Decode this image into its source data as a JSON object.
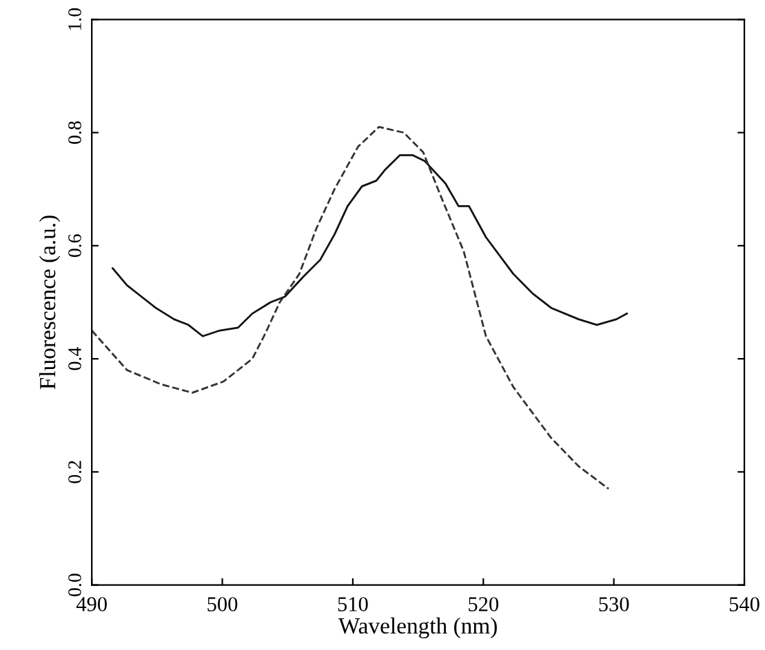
{
  "chart_data": {
    "type": "line",
    "xlabel": "Wavelength (nm)",
    "ylabel": "Fluorescence (a.u.)",
    "xlim": [
      490,
      540
    ],
    "xticks": [
      490,
      500,
      510,
      520,
      530,
      540
    ],
    "ylim": [
      0,
      1
    ],
    "yticks": [
      {
        "value": 0,
        "label": "0.0"
      },
      {
        "value": 0.2,
        "label": "0.2"
      },
      {
        "value": 0.4,
        "label": "0.4"
      },
      {
        "value": 0.6,
        "label": "0.6"
      },
      {
        "value": 0.8,
        "label": "0.8"
      },
      {
        "value": 1,
        "label": "1.0"
      }
    ],
    "grid": false,
    "legend": false,
    "series": [
      {
        "color": "#111111",
        "line_style": "solid",
        "x": [
          491.6,
          492.7,
          493.8,
          494.9,
          496.3,
          497.4,
          498.5,
          499.8,
          501.2,
          502.3,
          503.7,
          504.8,
          506.2,
          507.5,
          508.6,
          509.6,
          510.7,
          511.8,
          512.5,
          513.6,
          514.6,
          515.5,
          517.1,
          518.1,
          518.9,
          520.2,
          522.3,
          523.8,
          525.2,
          527.3,
          528.7,
          530.2,
          531.0
        ],
        "values": [
          0.56,
          0.53,
          0.51,
          0.49,
          0.47,
          0.46,
          0.44,
          0.45,
          0.455,
          0.48,
          0.5,
          0.51,
          0.545,
          0.575,
          0.62,
          0.67,
          0.705,
          0.715,
          0.735,
          0.76,
          0.76,
          0.75,
          0.71,
          0.67,
          0.67,
          0.615,
          0.55,
          0.515,
          0.49,
          0.47,
          0.46,
          0.47,
          0.48
        ]
      },
      {
        "color": "#333333",
        "line_style": "dashed",
        "x": [
          490.0,
          492.7,
          495.3,
          497.7,
          500.1,
          502.3,
          503.3,
          504.4,
          505.9,
          507.2,
          508.6,
          510.4,
          512.0,
          513.9,
          515.4,
          516.7,
          518.5,
          520.2,
          522.3,
          525.2,
          527.3,
          529.6
        ],
        "values": [
          0.45,
          0.38,
          0.355,
          0.34,
          0.36,
          0.4,
          0.445,
          0.5,
          0.55,
          0.63,
          0.7,
          0.775,
          0.81,
          0.8,
          0.765,
          0.69,
          0.59,
          0.44,
          0.35,
          0.26,
          0.21,
          0.17
        ]
      }
    ]
  }
}
